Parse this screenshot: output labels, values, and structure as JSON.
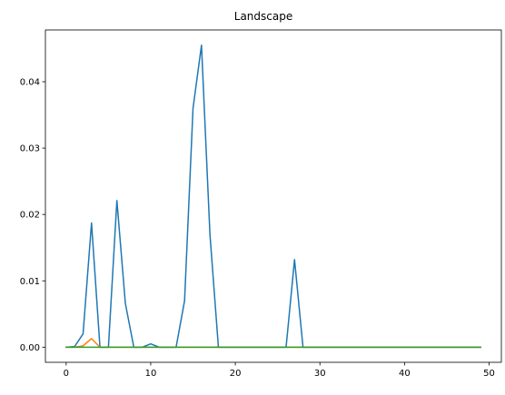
{
  "chart_data": {
    "type": "line",
    "title": "Landscape",
    "xlabel": "",
    "ylabel": "",
    "xlim": [
      -2.45,
      51.45
    ],
    "ylim": [
      -0.00228,
      0.0478
    ],
    "x_ticks": [
      0,
      10,
      20,
      30,
      40,
      50
    ],
    "x_tick_labels": [
      "0",
      "10",
      "20",
      "30",
      "40",
      "50"
    ],
    "y_ticks": [
      0.0,
      0.01,
      0.02,
      0.03,
      0.04
    ],
    "y_tick_labels": [
      "0.00",
      "0.01",
      "0.02",
      "0.03",
      "0.04"
    ],
    "grid": false,
    "x": [
      0,
      1,
      2,
      3,
      4,
      5,
      6,
      7,
      8,
      9,
      10,
      11,
      12,
      13,
      14,
      15,
      16,
      17,
      18,
      19,
      20,
      21,
      22,
      23,
      24,
      25,
      26,
      27,
      28,
      29,
      30,
      31,
      32,
      33,
      34,
      35,
      36,
      37,
      38,
      39,
      40,
      41,
      42,
      43,
      44,
      45,
      46,
      47,
      48,
      49
    ],
    "series": [
      {
        "color": "#1f77b4",
        "values": [
          0,
          0.0001,
          0.002,
          0.0187,
          0,
          0,
          0.0221,
          0.0066,
          0,
          0,
          0.0005,
          0,
          0,
          0,
          0.007,
          0.036,
          0.0455,
          0.017,
          0,
          0,
          0,
          0,
          0,
          0,
          0,
          0,
          0,
          0.0132,
          0,
          0,
          0,
          0,
          0,
          0,
          0,
          0,
          0,
          0,
          0,
          0,
          0,
          0,
          0,
          0,
          0,
          0,
          0,
          0,
          0,
          0
        ]
      },
      {
        "color": "#ff7f0e",
        "values": [
          0,
          0,
          0.0002,
          0.0013,
          0,
          0,
          0,
          0,
          0,
          0,
          0,
          0,
          0,
          0,
          0,
          0,
          0,
          0,
          0,
          0,
          0,
          0,
          0,
          0,
          0,
          0,
          0,
          0,
          0,
          0,
          0,
          0,
          0,
          0,
          0,
          0,
          0,
          0,
          0,
          0,
          0,
          0,
          0,
          0,
          0,
          0,
          0,
          0,
          0,
          0
        ]
      },
      {
        "color": "#2ca02c",
        "values": [
          0,
          0,
          0,
          0,
          0,
          0,
          0,
          0,
          0,
          0,
          0,
          0,
          0,
          0,
          0,
          0,
          0,
          0,
          0,
          0,
          0,
          0,
          0,
          0,
          0,
          0,
          0,
          0,
          0,
          0,
          0,
          0,
          0,
          0,
          0,
          0,
          0,
          0,
          0,
          0,
          0,
          0,
          0,
          0,
          0,
          0,
          0,
          0,
          0,
          0
        ]
      }
    ]
  }
}
